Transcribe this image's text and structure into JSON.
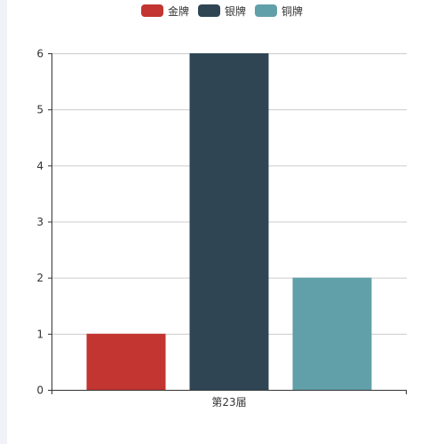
{
  "chart_data": {
    "type": "bar",
    "categories": [
      "第23届"
    ],
    "series": [
      {
        "name": "金牌",
        "values": [
          1
        ],
        "color": "#c23531"
      },
      {
        "name": "银牌",
        "values": [
          6
        ],
        "color": "#2f4554"
      },
      {
        "name": "铜牌",
        "values": [
          2
        ],
        "color": "#61a0a8"
      }
    ],
    "ylim": [
      0,
      6
    ],
    "yticks": [
      "0",
      "1",
      "2",
      "3",
      "4",
      "5",
      "6"
    ],
    "grid": true,
    "legend_position": "top-center",
    "title": "",
    "xlabel": "",
    "ylabel": ""
  }
}
